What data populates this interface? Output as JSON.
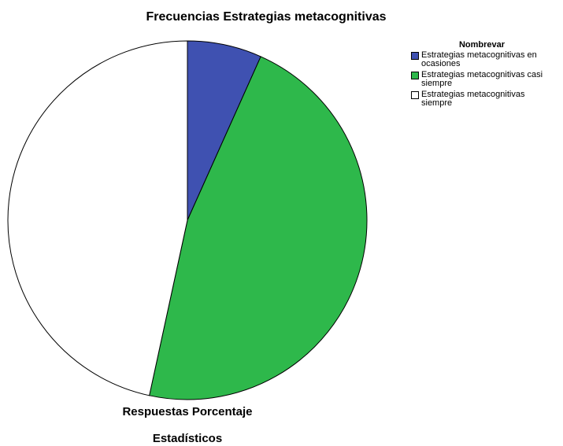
{
  "chart_data": {
    "type": "pie",
    "title": "Frecuencias Estrategias metacognitivas",
    "categories": [
      "Estrategias metacognitivas en ocasiones",
      "Estrategias metacognitivas casi siempre",
      "Estrategias metacognitivas siempre"
    ],
    "values": [
      6.7,
      46.7,
      46.6
    ],
    "colors": [
      "#3f51b1",
      "#2eb84b",
      "#ffffff"
    ],
    "legend_title": "Nombrevar",
    "legend": "top-right",
    "axis_label": "Respuestas Porcentaje",
    "caption": "Estadísticos"
  }
}
